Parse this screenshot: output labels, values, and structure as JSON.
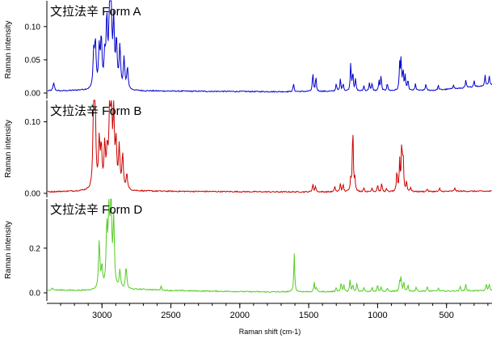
{
  "chart_data": {
    "type": "line",
    "xlabel": "Raman shift (cm-1)",
    "x_ticks": [
      "3000",
      "2500",
      "2000",
      "1500",
      "1000",
      "500"
    ],
    "xlim": [
      3400,
      170
    ],
    "x_axis_reversed": true,
    "grid": false,
    "panels": [
      {
        "title": "文拉法辛 Form A",
        "ylabel": "Raman intensity",
        "y_ticks": [
          "0.00",
          "0.05",
          "0.10"
        ],
        "ylim": [
          0,
          0.14
        ],
        "color": "#0000cc",
        "peaks": [
          [
            3350,
            0.012
          ],
          [
            3060,
            0.052
          ],
          [
            3048,
            0.066
          ],
          [
            3020,
            0.058
          ],
          [
            3005,
            0.072
          ],
          [
            2980,
            0.045
          ],
          [
            2965,
            0.098
          ],
          [
            2945,
            0.108
          ],
          [
            2935,
            0.14
          ],
          [
            2915,
            0.096
          ],
          [
            2895,
            0.07
          ],
          [
            2870,
            0.062
          ],
          [
            2840,
            0.046
          ],
          [
            2815,
            0.032
          ],
          [
            1610,
            0.012
          ],
          [
            1470,
            0.028
          ],
          [
            1448,
            0.022
          ],
          [
            1300,
            0.012
          ],
          [
            1270,
            0.018
          ],
          [
            1250,
            0.012
          ],
          [
            1195,
            0.042
          ],
          [
            1180,
            0.028
          ],
          [
            1160,
            0.018
          ],
          [
            1100,
            0.008
          ],
          [
            1060,
            0.012
          ],
          [
            1040,
            0.012
          ],
          [
            990,
            0.015
          ],
          [
            975,
            0.022
          ],
          [
            930,
            0.012
          ],
          [
            840,
            0.038
          ],
          [
            830,
            0.046
          ],
          [
            815,
            0.03
          ],
          [
            800,
            0.022
          ],
          [
            780,
            0.016
          ],
          [
            725,
            0.01
          ],
          [
            650,
            0.01
          ],
          [
            560,
            0.007
          ],
          [
            450,
            0.007
          ],
          [
            360,
            0.011
          ],
          [
            300,
            0.01
          ],
          [
            220,
            0.016
          ],
          [
            190,
            0.015
          ]
        ],
        "baseline": [
          [
            3400,
            0.003
          ],
          [
            3300,
            0.003
          ],
          [
            3150,
            0.004
          ],
          [
            2700,
            0.003
          ],
          [
            1700,
            0.002
          ],
          [
            1000,
            0.003
          ],
          [
            600,
            0.004
          ],
          [
            400,
            0.007
          ],
          [
            170,
            0.012
          ]
        ]
      },
      {
        "title": "文拉法辛 Form B",
        "ylabel": "Raman intensity",
        "y_ticks": [
          "0.00",
          "0.10"
        ],
        "ylim": [
          -0.005,
          0.13
        ],
        "color": "#cc0000",
        "peaks": [
          [
            3060,
            0.124
          ],
          [
            3050,
            0.105
          ],
          [
            3020,
            0.065
          ],
          [
            3005,
            0.055
          ],
          [
            2980,
            0.06
          ],
          [
            2962,
            0.048
          ],
          [
            2945,
            0.1
          ],
          [
            2932,
            0.115
          ],
          [
            2915,
            0.1
          ],
          [
            2898,
            0.06
          ],
          [
            2875,
            0.058
          ],
          [
            2850,
            0.048
          ],
          [
            2820,
            0.022
          ],
          [
            1470,
            0.012
          ],
          [
            1450,
            0.008
          ],
          [
            1310,
            0.008
          ],
          [
            1270,
            0.012
          ],
          [
            1250,
            0.01
          ],
          [
            1195,
            0.018
          ],
          [
            1180,
            0.092
          ],
          [
            1165,
            0.018
          ],
          [
            1100,
            0.006
          ],
          [
            1040,
            0.006
          ],
          [
            1000,
            0.01
          ],
          [
            970,
            0.012
          ],
          [
            935,
            0.004
          ],
          [
            860,
            0.028
          ],
          [
            840,
            0.042
          ],
          [
            825,
            0.066
          ],
          [
            815,
            0.05
          ],
          [
            790,
            0.014
          ],
          [
            760,
            0.006
          ],
          [
            640,
            0.004
          ],
          [
            550,
            0.004
          ],
          [
            440,
            0.005
          ]
        ],
        "baseline": [
          [
            3400,
            0.002
          ],
          [
            3150,
            0.003
          ],
          [
            2700,
            0.003
          ],
          [
            1700,
            0.002
          ],
          [
            800,
            0.002
          ],
          [
            400,
            0.003
          ],
          [
            170,
            0.003
          ]
        ]
      },
      {
        "title": "文拉法辛 Form D",
        "ylabel": "Raman intensity",
        "y_ticks": [
          "0.0",
          "0.2"
        ],
        "ylim": [
          -0.01,
          0.42
        ],
        "color": "#55cc22",
        "peaks": [
          [
            3360,
            0.01
          ],
          [
            3020,
            0.21
          ],
          [
            3000,
            0.09
          ],
          [
            2965,
            0.26
          ],
          [
            2950,
            0.31
          ],
          [
            2935,
            0.42
          ],
          [
            2915,
            0.3
          ],
          [
            2870,
            0.08
          ],
          [
            2825,
            0.1
          ],
          [
            2570,
            0.02
          ],
          [
            1605,
            0.17
          ],
          [
            1460,
            0.04
          ],
          [
            1445,
            0.02
          ],
          [
            1300,
            0.02
          ],
          [
            1265,
            0.04
          ],
          [
            1245,
            0.03
          ],
          [
            1200,
            0.05
          ],
          [
            1180,
            0.03
          ],
          [
            1150,
            0.04
          ],
          [
            1100,
            0.02
          ],
          [
            1040,
            0.02
          ],
          [
            1000,
            0.03
          ],
          [
            975,
            0.02
          ],
          [
            930,
            0.015
          ],
          [
            840,
            0.045
          ],
          [
            830,
            0.06
          ],
          [
            810,
            0.04
          ],
          [
            780,
            0.03
          ],
          [
            720,
            0.02
          ],
          [
            640,
            0.02
          ],
          [
            560,
            0.015
          ],
          [
            400,
            0.02
          ],
          [
            360,
            0.03
          ],
          [
            210,
            0.03
          ],
          [
            190,
            0.03
          ]
        ],
        "baseline": [
          [
            3400,
            0.012
          ],
          [
            3300,
            0.012
          ],
          [
            3150,
            0.01
          ],
          [
            2700,
            0.015
          ],
          [
            2500,
            0.01
          ],
          [
            1800,
            0.004
          ],
          [
            1000,
            0.006
          ],
          [
            500,
            0.008
          ],
          [
            170,
            0.01
          ]
        ]
      }
    ]
  }
}
